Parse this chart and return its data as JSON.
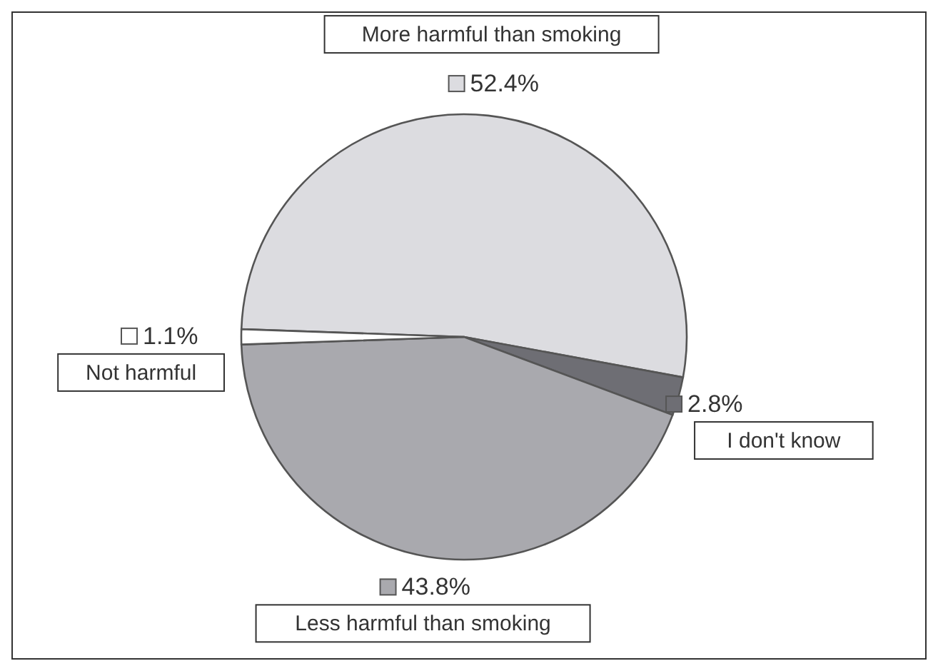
{
  "chart_data": {
    "type": "pie",
    "categories": [
      "More harmful than smoking",
      "I don't know",
      "Less harmful than smoking",
      "Not harmful"
    ],
    "values": [
      52.4,
      2.8,
      43.8,
      1.1
    ],
    "value_labels": [
      "52.4%",
      "2.8%",
      "43.8%",
      "1.1%"
    ],
    "colors": [
      "#dcdce0",
      "#6e6e74",
      "#a9a9ae",
      "#ffffff"
    ],
    "legend": "bottom left"
  }
}
